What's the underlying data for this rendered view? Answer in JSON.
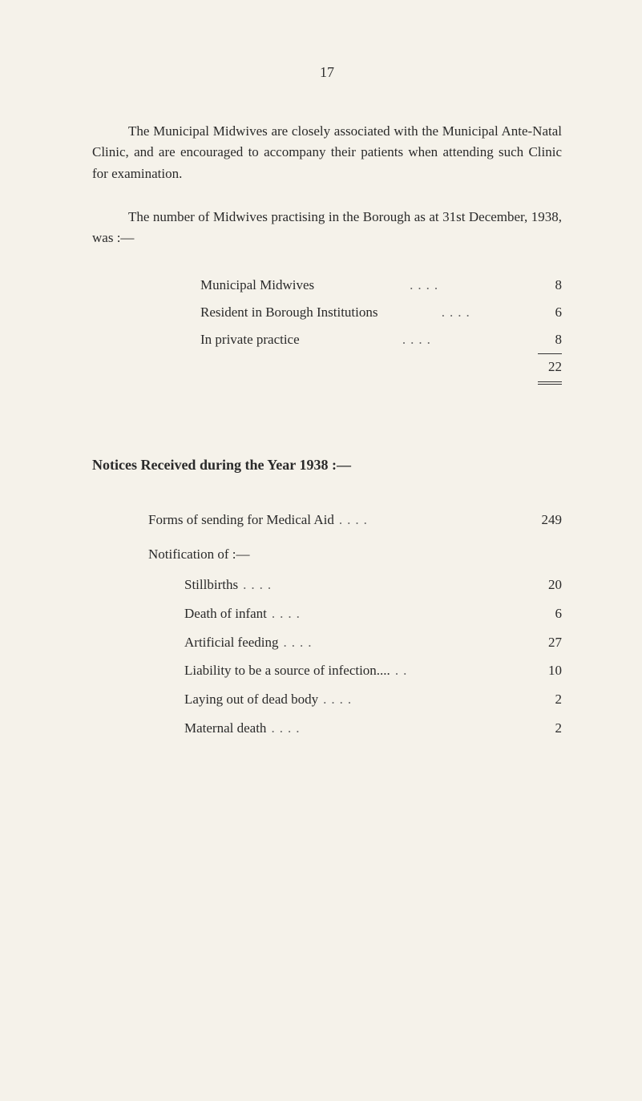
{
  "page_number": "17",
  "paragraph1": "The Municipal Midwives are closely associated with the Municipal Ante-Natal Clinic, and are encouraged to accompany their patients when attending such Clinic for examination.",
  "paragraph2": "The number of Midwives practising in the Borough as at 31st December, 1938, was :—",
  "midwives": {
    "rows": [
      {
        "label": "Municipal Midwives",
        "value": "8"
      },
      {
        "label": "Resident in Borough Institutions",
        "value": "6"
      },
      {
        "label": "In private practice",
        "value": "8"
      }
    ],
    "total": "22"
  },
  "notices_heading": "Notices Received during the Year 1938 :—",
  "notices": {
    "forms_label": "Forms of sending for Medical Aid",
    "forms_value": "249",
    "notification_label": "Notification of :—",
    "items": [
      {
        "label": "Stillbirths",
        "value": "20"
      },
      {
        "label": "Death of infant",
        "value": "6"
      },
      {
        "label": "Artificial feeding",
        "value": "27"
      },
      {
        "label": "Liability to be a source of infection....",
        "value": "10"
      },
      {
        "label": "Laying out of dead body",
        "value": "2"
      },
      {
        "label": "Maternal death",
        "value": "2"
      }
    ]
  },
  "colors": {
    "background": "#f5f2ea",
    "text": "#2a2a2a",
    "dots": "#666666"
  },
  "typography": {
    "body_fontsize": 17,
    "heading_fontsize": 18,
    "pagenum_fontsize": 18,
    "font_family": "Georgia, Times New Roman, serif"
  }
}
